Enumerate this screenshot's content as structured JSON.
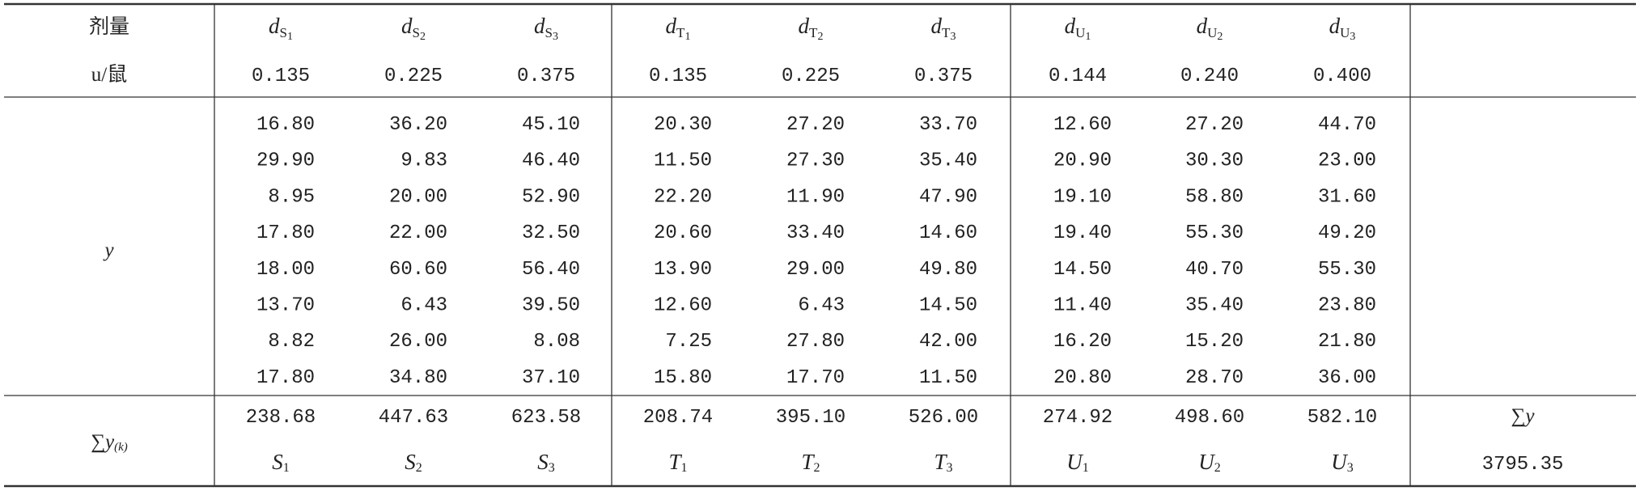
{
  "header": {
    "dose_label": "剂量",
    "unit_label": "u/鼠",
    "columns": [
      {
        "symbol": "d",
        "group": "S",
        "index": "1",
        "dose": "0.135"
      },
      {
        "symbol": "d",
        "group": "S",
        "index": "2",
        "dose": "0.225"
      },
      {
        "symbol": "d",
        "group": "S",
        "index": "3",
        "dose": "0.375"
      },
      {
        "symbol": "d",
        "group": "T",
        "index": "1",
        "dose": "0.135"
      },
      {
        "symbol": "d",
        "group": "T",
        "index": "2",
        "dose": "0.225"
      },
      {
        "symbol": "d",
        "group": "T",
        "index": "3",
        "dose": "0.375"
      },
      {
        "symbol": "d",
        "group": "U",
        "index": "1",
        "dose": "0.144"
      },
      {
        "symbol": "d",
        "group": "U",
        "index": "2",
        "dose": "0.240"
      },
      {
        "symbol": "d",
        "group": "U",
        "index": "3",
        "dose": "0.400"
      }
    ]
  },
  "body": {
    "label": "y",
    "rows": [
      [
        "16.80",
        "36.20",
        "45.10",
        "20.30",
        "27.20",
        "33.70",
        "12.60",
        "27.20",
        "44.70"
      ],
      [
        "29.90",
        "9.83",
        "46.40",
        "11.50",
        "27.30",
        "35.40",
        "20.90",
        "30.30",
        "23.00"
      ],
      [
        "8.95",
        "20.00",
        "52.90",
        "22.20",
        "11.90",
        "47.90",
        "19.10",
        "58.80",
        "31.60"
      ],
      [
        "17.80",
        "22.00",
        "32.50",
        "20.60",
        "33.40",
        "14.60",
        "19.40",
        "55.30",
        "49.20"
      ],
      [
        "18.00",
        "60.60",
        "56.40",
        "13.90",
        "29.00",
        "49.80",
        "14.50",
        "40.70",
        "55.30"
      ],
      [
        "13.70",
        "6.43",
        "39.50",
        "12.60",
        "6.43",
        "14.50",
        "11.40",
        "35.40",
        "23.80"
      ],
      [
        "8.82",
        "26.00",
        "8.08",
        "7.25",
        "27.80",
        "42.00",
        "16.20",
        "15.20",
        "21.80"
      ],
      [
        "17.80",
        "34.80",
        "37.10",
        "15.80",
        "17.70",
        "11.50",
        "20.80",
        "28.70",
        "36.00"
      ]
    ]
  },
  "totals": {
    "label": {
      "sigma": "∑",
      "symbol": "y",
      "index": "(k)"
    },
    "sums": [
      "238.68",
      "447.63",
      "623.58",
      "208.74",
      "395.10",
      "526.00",
      "274.92",
      "498.60",
      "582.10"
    ],
    "names": [
      {
        "letter": "S",
        "index": "1"
      },
      {
        "letter": "S",
        "index": "2"
      },
      {
        "letter": "S",
        "index": "3"
      },
      {
        "letter": "T",
        "index": "1"
      },
      {
        "letter": "T",
        "index": "2"
      },
      {
        "letter": "T",
        "index": "3"
      },
      {
        "letter": "U",
        "index": "1"
      },
      {
        "letter": "U",
        "index": "2"
      },
      {
        "letter": "U",
        "index": "3"
      }
    ],
    "grand_label": {
      "sigma": "∑",
      "symbol": "y"
    },
    "grand_total": "3795.35"
  }
}
